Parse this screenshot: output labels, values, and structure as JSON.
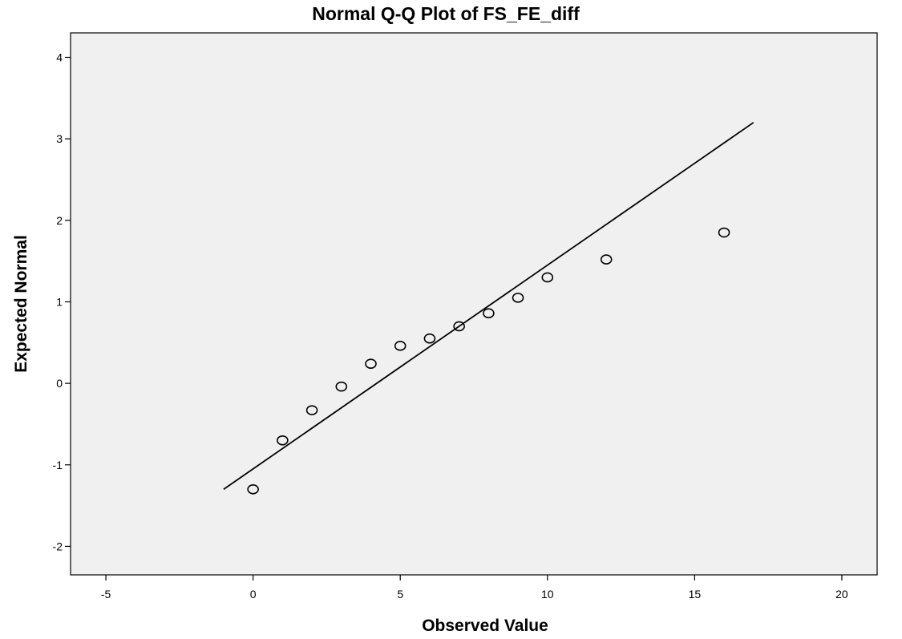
{
  "colors": {
    "plot_background": "#f0f0f0",
    "frame": "#000000",
    "marker_stroke": "#000000",
    "reference_line": "#000000"
  },
  "chart_data": {
    "type": "scatter",
    "subtype": "normal-qq-plot",
    "title": "Normal Q-Q Plot of FS_FE_diff",
    "xlabel": "Observed Value",
    "ylabel": "Expected Normal",
    "xlim": [
      -6.2,
      21.2
    ],
    "ylim": [
      -2.35,
      4.3
    ],
    "xticks": [
      -5,
      0,
      5,
      10,
      15,
      20
    ],
    "yticks": [
      -2,
      -1,
      0,
      1,
      2,
      3,
      4
    ],
    "grid": false,
    "legend": "none",
    "marker": "open-circle",
    "series": [
      {
        "x": [
          0,
          1,
          2,
          3,
          4,
          5,
          6,
          7,
          8,
          9,
          10,
          12,
          16
        ],
        "y": [
          -1.3,
          -0.7,
          -0.33,
          -0.04,
          0.24,
          0.46,
          0.55,
          0.7,
          0.86,
          1.05,
          1.3,
          1.52,
          1.85
        ]
      }
    ],
    "reference_line": {
      "x": [
        -1,
        17
      ],
      "y": [
        -1.3,
        3.2
      ]
    }
  }
}
